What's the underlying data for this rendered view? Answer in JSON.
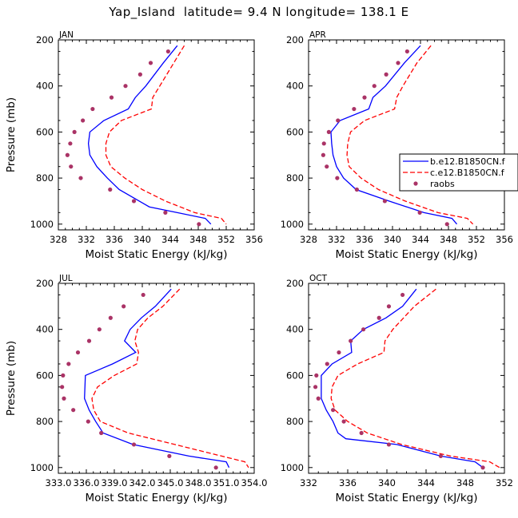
{
  "title": "Yap_Island  latitude= 9.4 N longitude= 138.1 E",
  "chart_data": [
    {
      "type": "line",
      "panel_label": "JAN",
      "xlabel": "Moist Static Energy (kJ/kg)",
      "ylabel": "Pressure (mb)",
      "xlim": [
        328,
        356
      ],
      "xticks": [
        328,
        332,
        336,
        340,
        344,
        348,
        352,
        356
      ],
      "xtick_labels": [
        "328",
        "332",
        "336",
        "340",
        "344",
        "348",
        "352",
        "356"
      ],
      "ylim": [
        200,
        1025
      ],
      "yticks": [
        200,
        400,
        600,
        800,
        1000
      ],
      "ytick_labels": [
        "200",
        "400",
        "600",
        "800",
        "1000"
      ],
      "y_reversed": true,
      "series": [
        {
          "name": "b.e12.B1850CN.f",
          "style": "solid",
          "color": "#0000ff",
          "points": [
            [
              345.0,
              225
            ],
            [
              343.0,
              300
            ],
            [
              340.5,
              400
            ],
            [
              339.0,
              450
            ],
            [
              338.0,
              500
            ],
            [
              334.5,
              550
            ],
            [
              332.5,
              600
            ],
            [
              332.3,
              650
            ],
            [
              332.5,
              700
            ],
            [
              333.5,
              750
            ],
            [
              335.0,
              800
            ],
            [
              336.7,
              850
            ],
            [
              341.0,
              925
            ],
            [
              345.0,
              950
            ],
            [
              349.0,
              975
            ],
            [
              349.8,
              1000
            ]
          ]
        },
        {
          "name": "c.e12.B1850CN.f",
          "style": "dashed",
          "color": "#ff0000",
          "points": [
            [
              346.0,
              225
            ],
            [
              344.5,
              300
            ],
            [
              342.5,
              400
            ],
            [
              341.5,
              450
            ],
            [
              341.3,
              500
            ],
            [
              337.0,
              550
            ],
            [
              335.3,
              600
            ],
            [
              334.8,
              650
            ],
            [
              334.8,
              700
            ],
            [
              335.5,
              750
            ],
            [
              337.5,
              800
            ],
            [
              340.0,
              850
            ],
            [
              343.3,
              900
            ],
            [
              347.5,
              950
            ],
            [
              351.3,
              975
            ],
            [
              352.0,
              1000
            ]
          ]
        },
        {
          "name": "raobs",
          "style": "markers",
          "color": "#aa3366",
          "points": [
            [
              343.7,
              250
            ],
            [
              341.2,
              300
            ],
            [
              339.7,
              350
            ],
            [
              337.6,
              400
            ],
            [
              335.6,
              450
            ],
            [
              332.9,
              500
            ],
            [
              331.5,
              550
            ],
            [
              330.3,
              600
            ],
            [
              329.7,
              650
            ],
            [
              329.3,
              700
            ],
            [
              329.8,
              750
            ],
            [
              331.2,
              800
            ],
            [
              335.4,
              850
            ],
            [
              338.8,
              900
            ],
            [
              343.3,
              950
            ],
            [
              348.1,
              1000
            ]
          ]
        }
      ]
    },
    {
      "type": "line",
      "panel_label": "APR",
      "xlabel": "Moist Static Energy (kJ/kg)",
      "ylabel": "",
      "xlim": [
        328,
        356
      ],
      "xticks": [
        328,
        332,
        336,
        340,
        344,
        348,
        352,
        356
      ],
      "xtick_labels": [
        "328",
        "332",
        "336",
        "340",
        "344",
        "348",
        "352",
        "356"
      ],
      "ylim": [
        200,
        1025
      ],
      "yticks": [
        200,
        400,
        600,
        800,
        1000
      ],
      "ytick_labels": [
        "200",
        "400",
        "600",
        "800",
        "1000"
      ],
      "y_reversed": true,
      "series": [
        {
          "name": "b.e12.B1850CN.f",
          "style": "solid",
          "color": "#0000ff",
          "points": [
            [
              344.0,
              225
            ],
            [
              341.7,
              300
            ],
            [
              339.0,
              400
            ],
            [
              337.2,
              450
            ],
            [
              336.6,
              500
            ],
            [
              332.5,
              550
            ],
            [
              331.2,
              600
            ],
            [
              331.3,
              650
            ],
            [
              331.5,
              700
            ],
            [
              332.0,
              750
            ],
            [
              333.0,
              800
            ],
            [
              334.8,
              850
            ],
            [
              339.5,
              900
            ],
            [
              344.5,
              950
            ],
            [
              348.5,
              975
            ],
            [
              349.2,
              1000
            ]
          ]
        },
        {
          "name": "c.e12.B1850CN.f",
          "style": "dashed",
          "color": "#ff0000",
          "points": [
            [
              345.5,
              225
            ],
            [
              343.5,
              300
            ],
            [
              341.5,
              400
            ],
            [
              340.6,
              450
            ],
            [
              340.3,
              500
            ],
            [
              336.0,
              550
            ],
            [
              334.0,
              600
            ],
            [
              333.6,
              650
            ],
            [
              333.5,
              700
            ],
            [
              333.8,
              750
            ],
            [
              335.5,
              800
            ],
            [
              338.0,
              850
            ],
            [
              341.8,
              900
            ],
            [
              346.5,
              950
            ],
            [
              350.7,
              975
            ],
            [
              351.5,
              1000
            ]
          ]
        },
        {
          "name": "raobs",
          "style": "markers",
          "color": "#aa3366",
          "points": [
            [
              342.1,
              250
            ],
            [
              340.8,
              300
            ],
            [
              339.1,
              350
            ],
            [
              337.4,
              400
            ],
            [
              336.0,
              450
            ],
            [
              334.5,
              500
            ],
            [
              332.2,
              550
            ],
            [
              330.9,
              600
            ],
            [
              330.2,
              650
            ],
            [
              330.1,
              700
            ],
            [
              330.6,
              750
            ],
            [
              332.1,
              800
            ],
            [
              334.9,
              850
            ],
            [
              338.9,
              900
            ],
            [
              343.9,
              950
            ],
            [
              347.8,
              1000
            ]
          ]
        }
      ],
      "legend": {
        "placement": "right, overlapping panel",
        "entries": [
          "b.e12.B1850CN.f",
          "c.e12.B1850CN.f",
          "raobs"
        ]
      }
    },
    {
      "type": "line",
      "panel_label": "JUL",
      "xlabel": "Moist Static Energy (kJ/kg)",
      "ylabel": "Pressure (mb)",
      "xlim": [
        333.0,
        354.0
      ],
      "xticks": [
        333.0,
        336.0,
        339.0,
        342.0,
        345.0,
        348.0,
        351.0,
        354.0
      ],
      "xtick_labels": [
        "333.0",
        "336.0",
        "339.0",
        "342.0",
        "345.0",
        "348.0",
        "351.0",
        "354.0"
      ],
      "ylim": [
        200,
        1025
      ],
      "yticks": [
        200,
        400,
        600,
        800,
        1000
      ],
      "ytick_labels": [
        "200",
        "400",
        "600",
        "800",
        "1000"
      ],
      "y_reversed": true,
      "series": [
        {
          "name": "b.e12.B1850CN.f",
          "style": "solid",
          "color": "#0000ff",
          "points": [
            [
              345.1,
              225
            ],
            [
              343.4,
              300
            ],
            [
              341.9,
              350
            ],
            [
              340.7,
              400
            ],
            [
              340.1,
              450
            ],
            [
              341.3,
              500
            ],
            [
              338.8,
              550
            ],
            [
              335.9,
              600
            ],
            [
              335.8,
              700
            ],
            [
              336.3,
              750
            ],
            [
              337.0,
              800
            ],
            [
              337.8,
              850
            ],
            [
              341.0,
              900
            ],
            [
              347.0,
              950
            ],
            [
              351.0,
              975
            ],
            [
              351.3,
              1000
            ]
          ]
        },
        {
          "name": "c.e12.B1850CN.f",
          "style": "dashed",
          "color": "#ff0000",
          "points": [
            [
              346.0,
              225
            ],
            [
              344.2,
              300
            ],
            [
              342.6,
              350
            ],
            [
              341.5,
              400
            ],
            [
              341.2,
              450
            ],
            [
              341.6,
              500
            ],
            [
              341.4,
              550
            ],
            [
              339.0,
              600
            ],
            [
              337.2,
              650
            ],
            [
              336.6,
              700
            ],
            [
              336.8,
              750
            ],
            [
              337.5,
              800
            ],
            [
              340.5,
              850
            ],
            [
              345.5,
              900
            ],
            [
              350.5,
              950
            ],
            [
              353.0,
              975
            ],
            [
              353.4,
              1000
            ]
          ]
        },
        {
          "name": "raobs",
          "style": "markers",
          "color": "#aa3366",
          "points": [
            [
              342.1,
              250
            ],
            [
              340.0,
              300
            ],
            [
              338.6,
              350
            ],
            [
              337.4,
              400
            ],
            [
              336.3,
              450
            ],
            [
              335.1,
              500
            ],
            [
              334.1,
              550
            ],
            [
              333.5,
              600
            ],
            [
              333.4,
              650
            ],
            [
              333.6,
              700
            ],
            [
              334.6,
              750
            ],
            [
              336.2,
              800
            ],
            [
              337.6,
              850
            ],
            [
              341.1,
              900
            ],
            [
              344.9,
              950
            ],
            [
              349.9,
              1000
            ]
          ]
        }
      ]
    },
    {
      "type": "line",
      "panel_label": "OCT",
      "xlabel": "Moist Static Energy (kJ/kg)",
      "ylabel": "",
      "xlim": [
        332,
        352
      ],
      "xticks": [
        332,
        336,
        340,
        344,
        348,
        352
      ],
      "xtick_labels": [
        "332",
        "336",
        "340",
        "344",
        "348",
        "352"
      ],
      "ylim": [
        200,
        1025
      ],
      "yticks": [
        200,
        400,
        600,
        800,
        1000
      ],
      "ytick_labels": [
        "200",
        "400",
        "600",
        "800",
        "1000"
      ],
      "y_reversed": true,
      "series": [
        {
          "name": "b.e12.B1850CN.f",
          "style": "solid",
          "color": "#0000ff",
          "points": [
            [
              343.0,
              225
            ],
            [
              341.6,
              300
            ],
            [
              339.9,
              350
            ],
            [
              337.6,
              400
            ],
            [
              336.3,
              450
            ],
            [
              336.4,
              500
            ],
            [
              334.4,
              550
            ],
            [
              333.3,
              600
            ],
            [
              333.3,
              700
            ],
            [
              333.8,
              750
            ],
            [
              334.5,
              800
            ],
            [
              335.0,
              850
            ],
            [
              335.8,
              875
            ],
            [
              341.0,
              900
            ],
            [
              345.5,
              950
            ],
            [
              349.0,
              975
            ],
            [
              349.8,
              1000
            ]
          ]
        },
        {
          "name": "c.e12.B1850CN.f",
          "style": "dashed",
          "color": "#ff0000",
          "points": [
            [
              345.0,
              225
            ],
            [
              342.8,
              300
            ],
            [
              340.6,
              400
            ],
            [
              339.8,
              450
            ],
            [
              339.7,
              500
            ],
            [
              337.0,
              550
            ],
            [
              335.0,
              600
            ],
            [
              334.4,
              650
            ],
            [
              334.3,
              700
            ],
            [
              334.7,
              750
            ],
            [
              336.0,
              800
            ],
            [
              338.0,
              850
            ],
            [
              341.5,
              900
            ],
            [
              346.5,
              950
            ],
            [
              350.5,
              975
            ],
            [
              351.5,
              1000
            ]
          ]
        },
        {
          "name": "raobs",
          "style": "markers",
          "color": "#aa3366",
          "points": [
            [
              341.6,
              250
            ],
            [
              340.2,
              300
            ],
            [
              339.2,
              350
            ],
            [
              337.6,
              400
            ],
            [
              336.3,
              450
            ],
            [
              335.1,
              500
            ],
            [
              333.9,
              550
            ],
            [
              332.8,
              600
            ],
            [
              332.7,
              650
            ],
            [
              333.0,
              700
            ],
            [
              334.5,
              750
            ],
            [
              335.6,
              800
            ],
            [
              337.4,
              850
            ],
            [
              340.2,
              900
            ],
            [
              345.5,
              950
            ],
            [
              349.8,
              1000
            ]
          ]
        }
      ]
    }
  ]
}
